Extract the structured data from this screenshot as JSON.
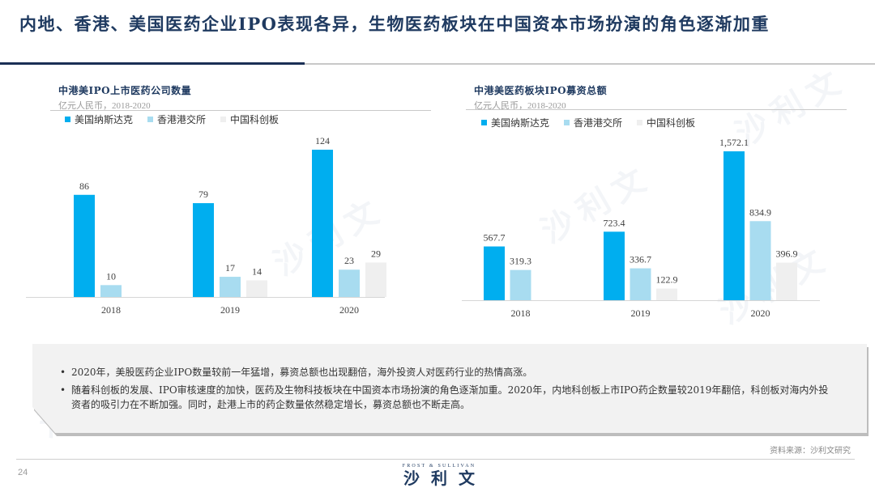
{
  "page": {
    "title": "内地、香港、美国医药企业IPO表现各异，生物医药板块在中国资本市场扮演的角色逐渐加重",
    "page_number": "24",
    "source": "资料来源：沙利文研究",
    "logo_en": "FROST & SULLIVAN",
    "logo_cn": "沙利文",
    "watermark": "沙利文"
  },
  "notes": [
    "2020年，美股医药企业IPO数量较前一年猛增，募资总额也出现翻倍，海外投资人对医药行业的热情高涨。",
    "随着科创板的发展、IPO审核速度的加快，医药及生物科技板块在中国资本市场扮演的角色逐渐加重。2020年，内地科创板上市IPO药企数量较2019年翻倍，科创板对海内外投资者的吸引力在不断加强。同时，赴港上市的药企数量依然稳定增长，募资总额也不断走高。"
  ],
  "colors": {
    "nasdaq": "#00aeef",
    "hkex": "#a8dcf0",
    "star": "#efefef",
    "title": "#1f3a60"
  },
  "chart_data": [
    {
      "type": "bar",
      "title": "中港美IPO上市医药公司数量",
      "subtitle": "亿元人民币，2018-2020",
      "xlabel": "",
      "ylabel": "",
      "categories": [
        "2018",
        "2019",
        "2020"
      ],
      "series": [
        {
          "name": "美国纳斯达克",
          "values": [
            86,
            79,
            124
          ],
          "labels": [
            "86",
            "79",
            "124"
          ]
        },
        {
          "name": "香港港交所",
          "values": [
            10,
            17,
            23
          ],
          "labels": [
            "10",
            "17",
            "23"
          ]
        },
        {
          "name": "中国科创板",
          "values": [
            null,
            14,
            29
          ],
          "labels": [
            null,
            "14",
            "29"
          ]
        }
      ],
      "ylim": [
        0,
        124
      ],
      "grid": false,
      "legend_position": "top-left"
    },
    {
      "type": "bar",
      "title": "中港美医药板块IPO募资总额",
      "subtitle": "亿元人民币，2018-2020",
      "xlabel": "",
      "ylabel": "",
      "categories": [
        "2018",
        "2019",
        "2020"
      ],
      "series": [
        {
          "name": "美国纳斯达克",
          "values": [
            567.7,
            723.4,
            1572.1
          ],
          "labels": [
            "567.7",
            "723.4",
            "1,572.1"
          ]
        },
        {
          "name": "香港港交所",
          "values": [
            319.3,
            336.7,
            834.9
          ],
          "labels": [
            "319.3",
            "336.7",
            "834.9"
          ]
        },
        {
          "name": "中国科创板",
          "values": [
            null,
            122.9,
            396.9
          ],
          "labels": [
            null,
            "122.9",
            "396.9"
          ]
        }
      ],
      "ylim": [
        0,
        1572.1
      ],
      "grid": false,
      "legend_position": "top-left"
    }
  ]
}
